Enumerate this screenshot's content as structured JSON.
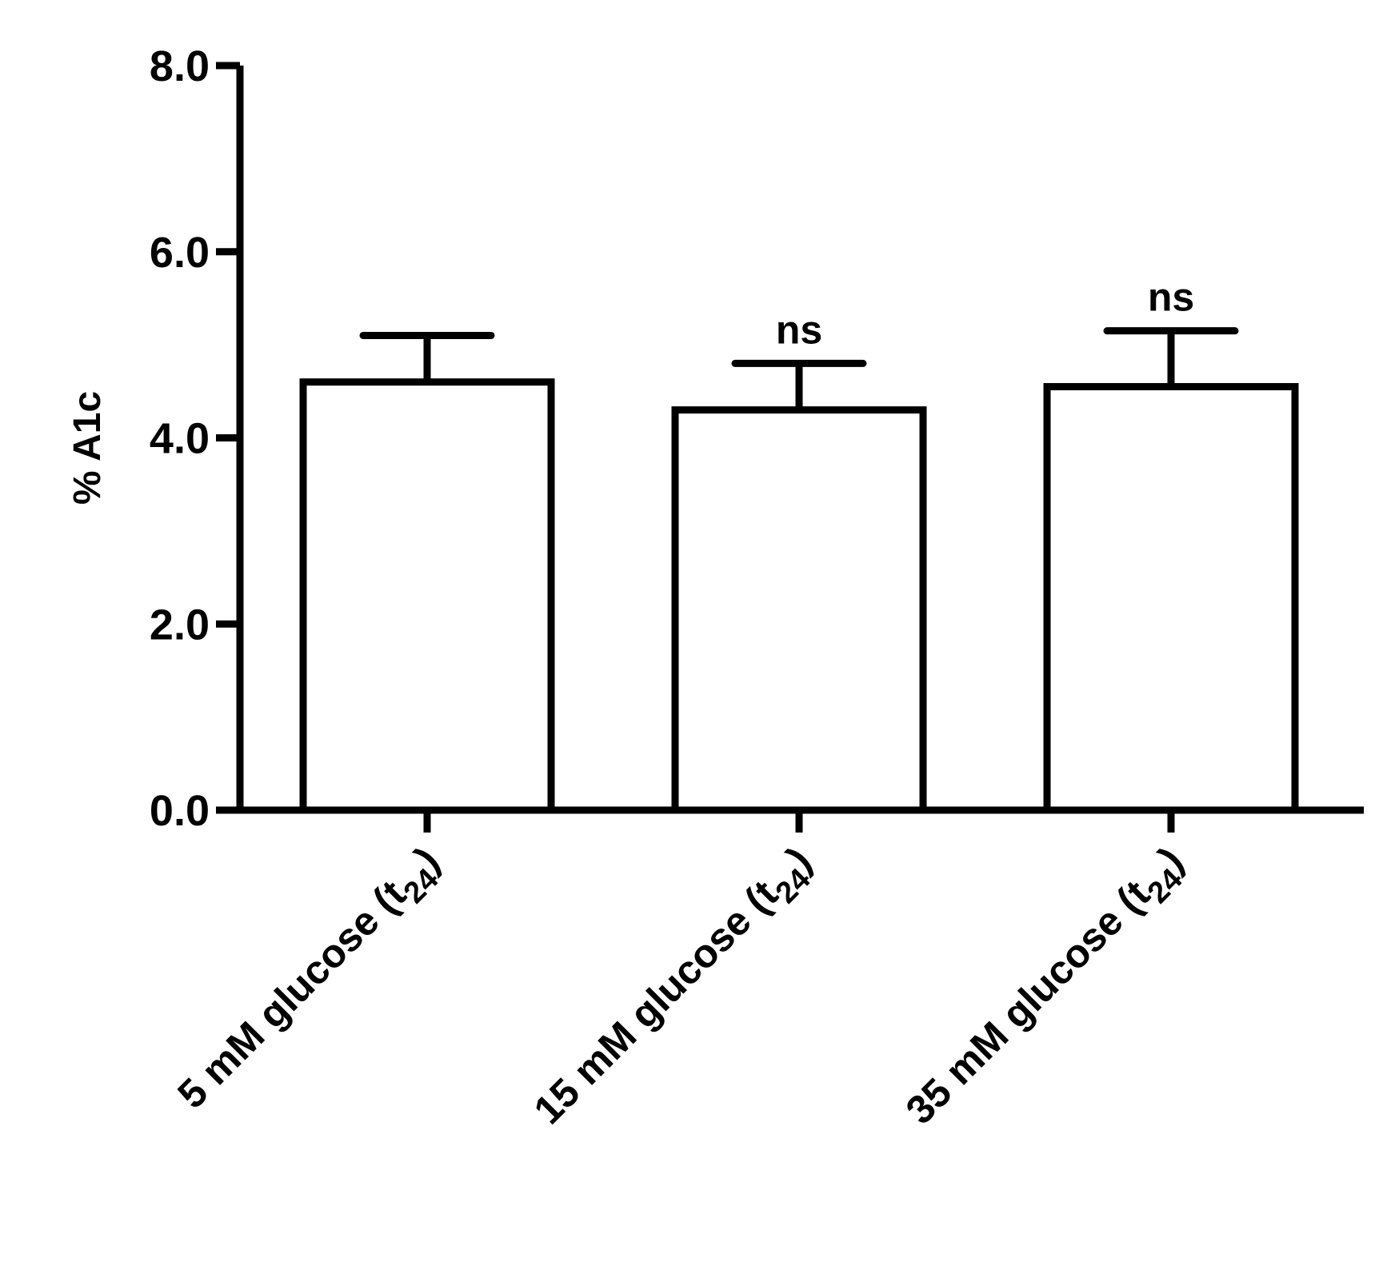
{
  "chart_data": {
    "type": "bar",
    "title": "",
    "xlabel": "",
    "ylabel": "% A1c",
    "ylim": [
      0,
      8
    ],
    "yticks": [
      "0.0",
      "2.0",
      "4.0",
      "6.0",
      "8.0"
    ],
    "grid": false,
    "categories": [
      {
        "main": "5 mM glucose (t",
        "sub": "24",
        "close": ")"
      },
      {
        "main": "15 mM glucose (t",
        "sub": "24",
        "close": ")"
      },
      {
        "main": "35 mM glucose (t",
        "sub": "24",
        "close": ")"
      }
    ],
    "values": [
      4.6,
      4.3,
      4.55
    ],
    "errors": [
      0.5,
      0.5,
      0.6
    ],
    "annotations": [
      "",
      "ns",
      "ns"
    ],
    "colors": {
      "bar_fill": "#ffffff",
      "stroke": "#000000"
    }
  }
}
